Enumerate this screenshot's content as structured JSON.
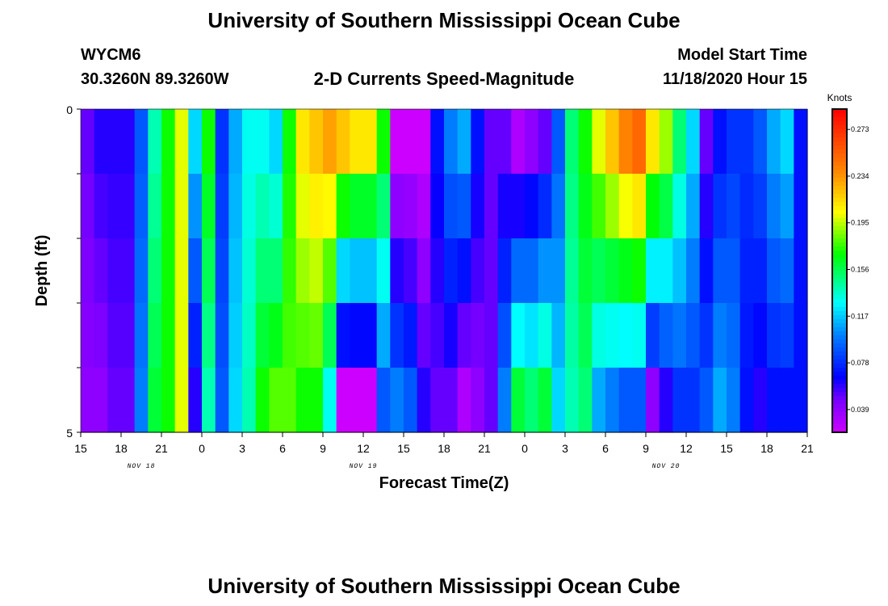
{
  "header": {
    "title": "University of Southern Mississippi Ocean Cube",
    "station_id": "WYCM6",
    "coordinates": "30.3260N 89.3260W",
    "plot_title": "2-D Currents Speed-Magnitude",
    "model_label": "Model Start Time",
    "model_time": "11/18/2020 Hour 15"
  },
  "footer": {
    "title": "University of Southern Mississippi Ocean Cube"
  },
  "chart_data": {
    "type": "heatmap",
    "xlabel": "Forecast Time(Z)",
    "ylabel": "Depth (ft)",
    "y_ticks": [
      "0",
      "5"
    ],
    "ylim": [
      0,
      5
    ],
    "x_ticks": [
      "15",
      "18",
      "21",
      "0",
      "3",
      "6",
      "9",
      "12",
      "15",
      "18",
      "21",
      "0",
      "3",
      "6",
      "9",
      "12",
      "15",
      "18",
      "21"
    ],
    "date_labels": [
      {
        "label": "NOV 18",
        "at_tick": 1.5
      },
      {
        "label": "NOV 19",
        "at_tick": 7
      },
      {
        "label": "NOV 20",
        "at_tick": 14.5
      }
    ],
    "colorbar": {
      "title": "Knots",
      "ticks": [
        "0.273",
        "0.234",
        "0.195",
        "0.156",
        "0.117",
        "0.078",
        "0.039"
      ],
      "tick_values": [
        0.273,
        0.234,
        0.195,
        0.156,
        0.117,
        0.078,
        0.039
      ],
      "vmin": 0.02,
      "vmax": 0.29
    },
    "hours": 54,
    "depth_levels": 5,
    "surface_speed_knots": [
      0.05,
      0.06,
      0.06,
      0.06,
      0.09,
      0.14,
      0.17,
      0.2,
      0.12,
      0.17,
      0.08,
      0.11,
      0.13,
      0.13,
      0.12,
      0.17,
      0.21,
      0.22,
      0.23,
      0.22,
      0.21,
      0.21,
      0.17,
      0.02,
      0.02,
      0.02,
      0.07,
      0.1,
      0.11,
      0.07,
      0.05,
      0.05,
      0.03,
      0.04,
      0.05,
      0.09,
      0.15,
      0.17,
      0.2,
      0.22,
      0.24,
      0.25,
      0.21,
      0.19,
      0.15,
      0.12,
      0.05,
      0.07,
      0.08,
      0.08,
      0.09,
      0.11,
      0.12,
      0.07
    ],
    "bottom_speed_knots": [
      0.04,
      0.04,
      0.05,
      0.05,
      0.1,
      0.16,
      0.17,
      0.2,
      0.06,
      0.14,
      0.09,
      0.12,
      0.14,
      0.17,
      0.18,
      0.18,
      0.17,
      0.17,
      0.13,
      0.02,
      0.02,
      0.02,
      0.09,
      0.1,
      0.09,
      0.06,
      0.05,
      0.05,
      0.03,
      0.04,
      0.05,
      0.1,
      0.16,
      0.15,
      0.16,
      0.12,
      0.14,
      0.15,
      0.11,
      0.1,
      0.09,
      0.09,
      0.04,
      0.06,
      0.08,
      0.08,
      0.09,
      0.11,
      0.1,
      0.07,
      0.06,
      0.07,
      0.07,
      0.07
    ]
  }
}
